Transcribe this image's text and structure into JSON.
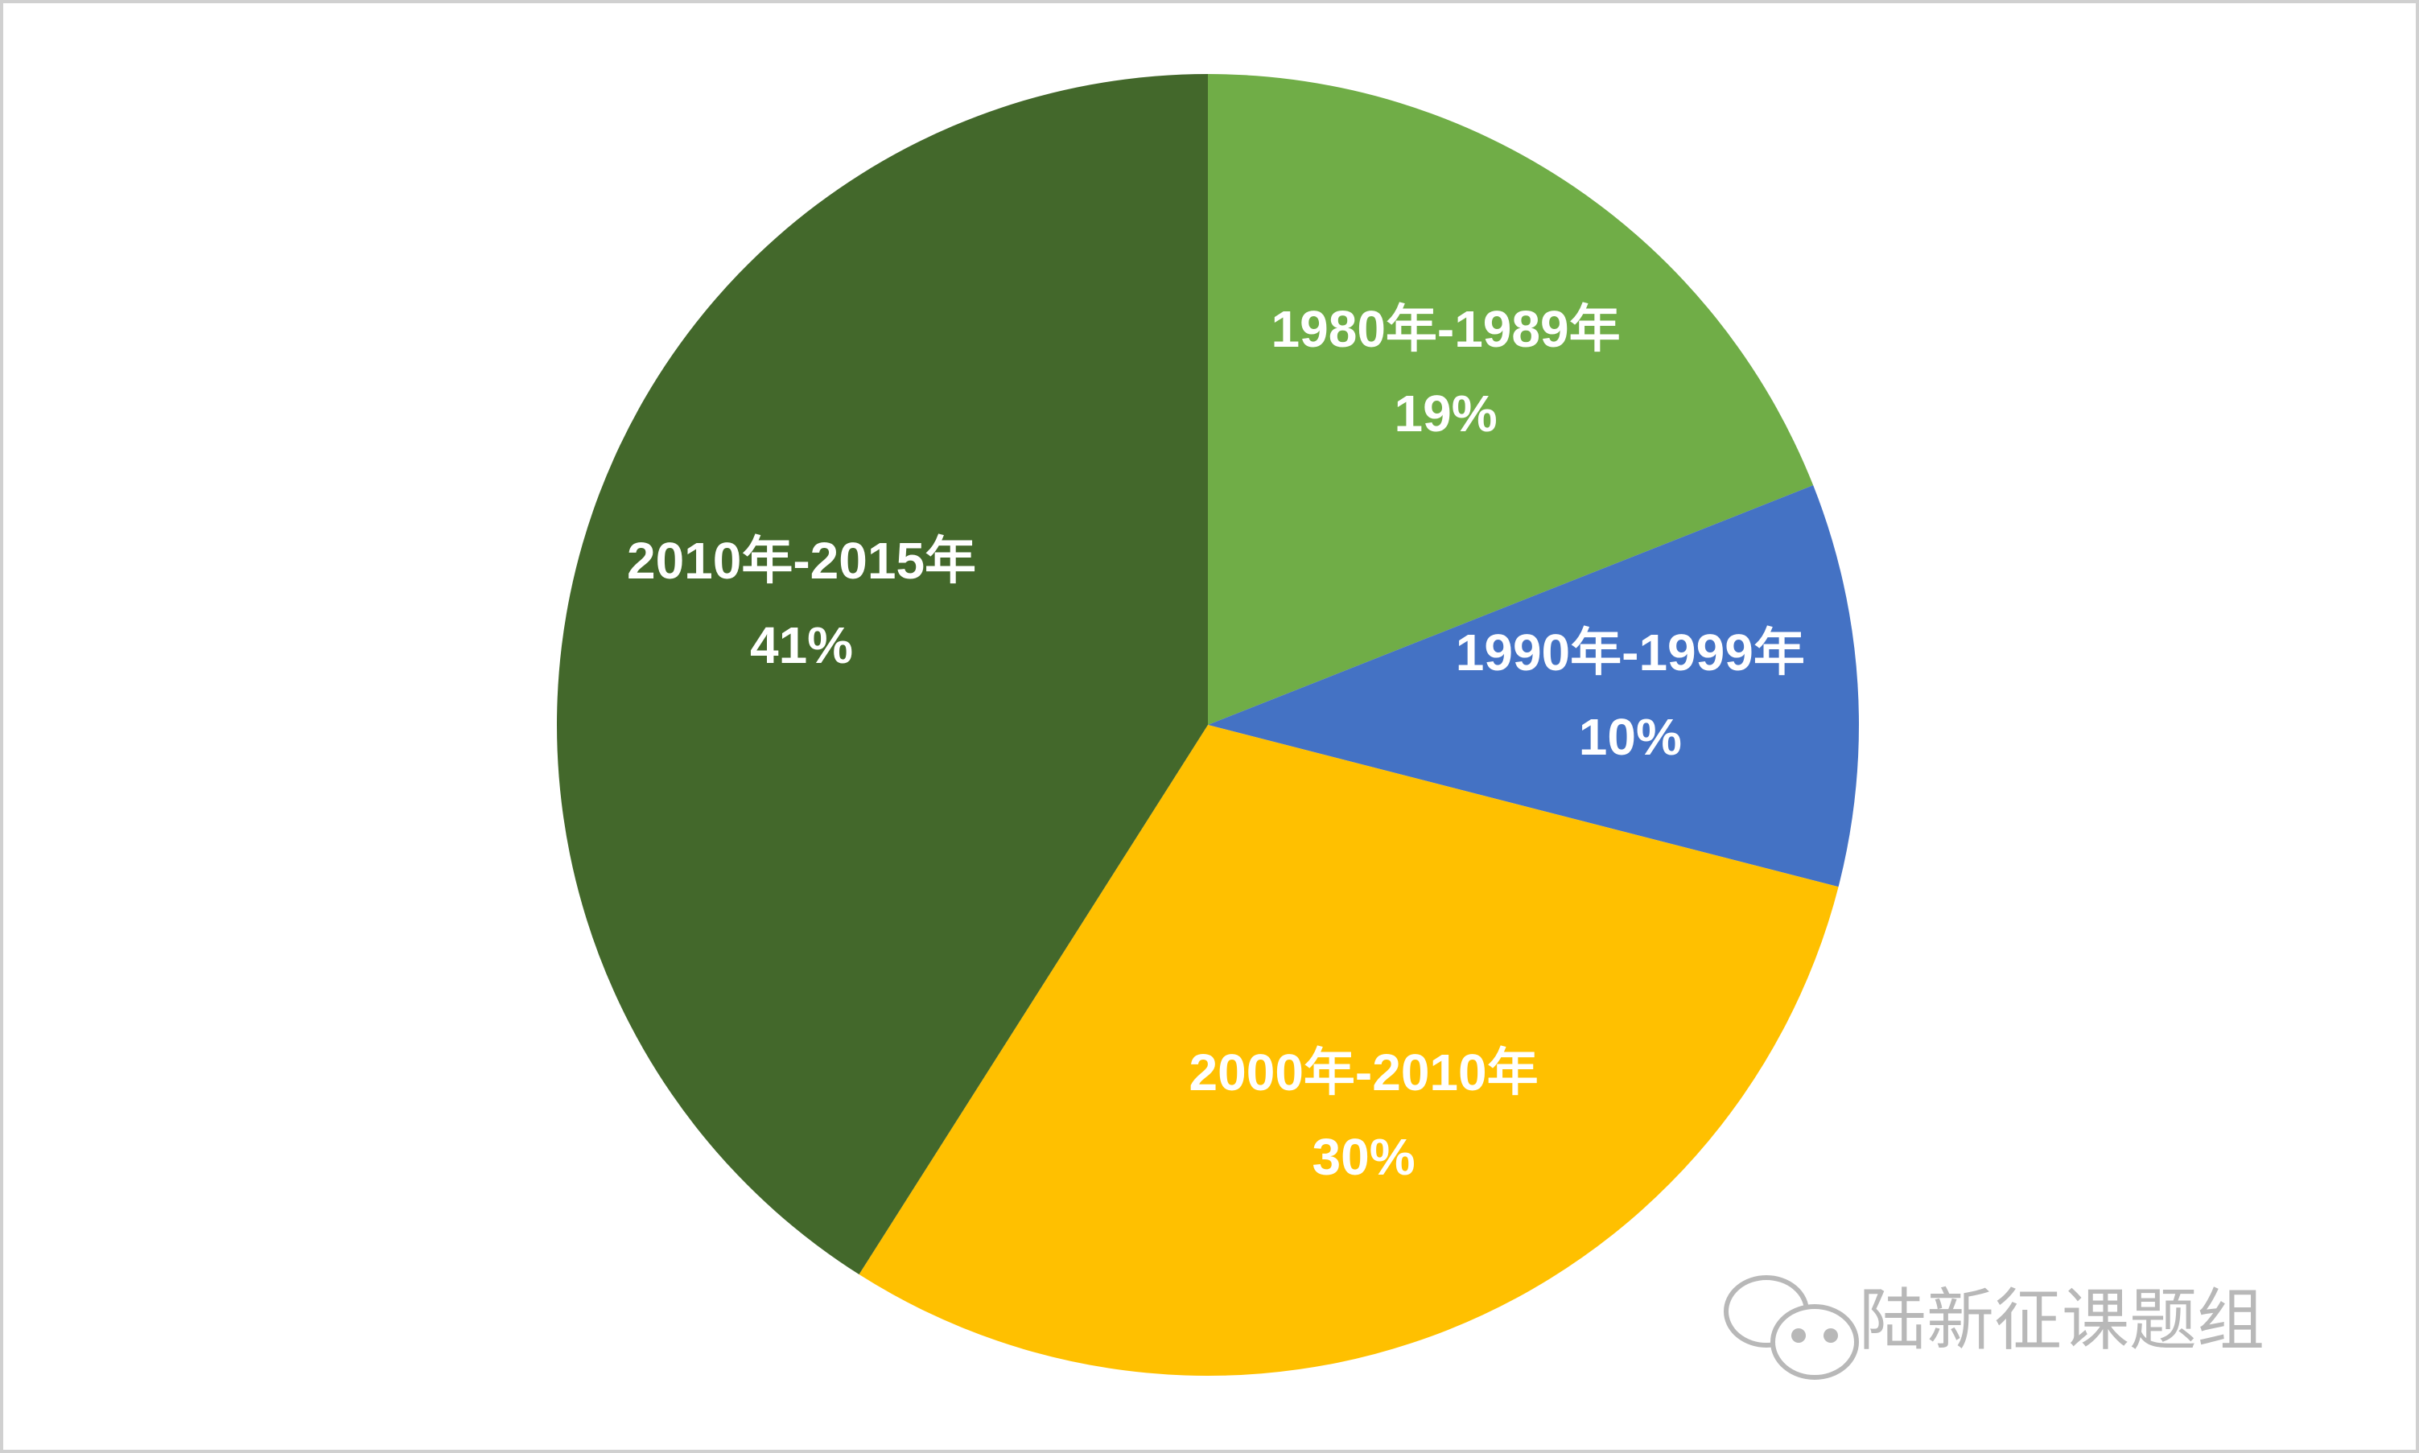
{
  "chart_data": {
    "type": "pie",
    "categories": [
      "1980年-1989年",
      "1990年-1999年",
      "2000年-2010年",
      "2010年-2015年"
    ],
    "values": [
      19,
      10,
      30,
      41
    ],
    "value_labels": [
      "19%",
      "10%",
      "30%",
      "41%"
    ],
    "colors": [
      "#70ad47",
      "#4472c4",
      "#ffc000",
      "#43682b"
    ],
    "watermark": "陆新征课题组"
  }
}
